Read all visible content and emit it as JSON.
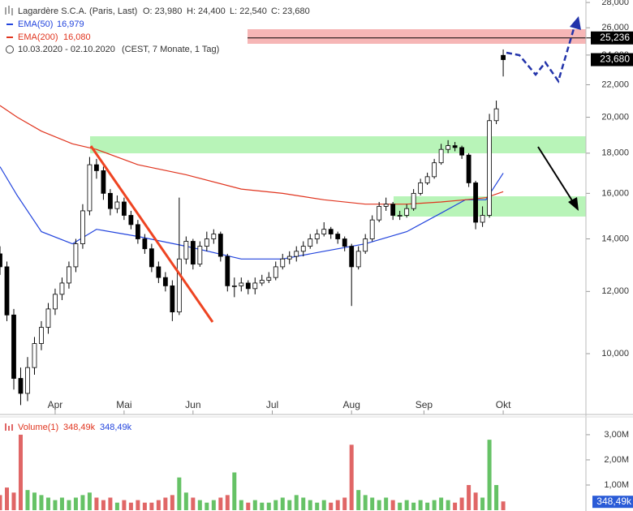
{
  "header": {
    "title": "Lagardère S.C.A. (Paris, Last)",
    "open": "O: 23,980",
    "high": "H: 24,400",
    "low": "L: 22,540",
    "close": "C: 23,680",
    "range": "10.03.2020 - 02.10.2020",
    "period": "(CEST, 7 Monate, 1 Tag)"
  },
  "chart_data": [
    {
      "type": "candlestick",
      "log": true,
      "x": [
        0,
        2,
        4,
        6,
        8,
        10,
        12,
        14,
        16,
        18,
        20,
        22,
        24,
        26,
        28,
        30,
        32,
        34,
        36,
        38,
        40,
        42,
        44,
        46,
        48,
        50,
        52,
        54,
        56,
        58,
        60,
        62,
        64,
        66,
        68,
        70,
        72,
        74,
        76,
        78,
        80,
        82,
        84,
        86,
        88,
        90,
        92,
        94,
        96,
        98,
        100,
        102,
        104,
        106,
        108,
        110,
        112,
        114,
        116,
        118,
        120,
        122,
        124,
        126,
        128,
        130,
        132,
        134,
        136,
        138,
        140,
        142,
        144,
        146
      ],
      "open": [
        13400,
        12900,
        11200,
        9300,
        8900,
        9600,
        10300,
        10800,
        11400,
        11900,
        12300,
        12900,
        13800,
        15200,
        17400,
        17100,
        16000,
        15300,
        15600,
        15000,
        14600,
        14000,
        13600,
        12900,
        12500,
        12200,
        11300,
        13200,
        13900,
        13000,
        13700,
        14000,
        14200,
        13300,
        12200,
        12200,
        12300,
        12100,
        12300,
        12400,
        12500,
        12900,
        13200,
        13300,
        13500,
        13700,
        14000,
        14200,
        14400,
        14200,
        14000,
        13700,
        12900,
        13500,
        14000,
        14800,
        15400,
        15500,
        15000,
        15000,
        15300,
        16000,
        16500,
        16800,
        17500,
        18200,
        18400,
        18300,
        17900,
        16500,
        14700,
        15000,
        19800,
        23980
      ],
      "high": [
        13700,
        13100,
        11400,
        9600,
        9900,
        10500,
        11000,
        11600,
        12100,
        12500,
        13100,
        14000,
        15500,
        17800,
        17700,
        17300,
        16200,
        15900,
        15800,
        15200,
        14800,
        14200,
        13800,
        13100,
        12700,
        12400,
        15800,
        14100,
        14000,
        13900,
        14300,
        14400,
        14300,
        13400,
        12500,
        12500,
        12400,
        12500,
        12600,
        12700,
        13100,
        13400,
        13500,
        13700,
        13900,
        14200,
        14400,
        14700,
        14500,
        14300,
        14100,
        13800,
        13700,
        14200,
        15000,
        15600,
        15800,
        15600,
        15200,
        15500,
        16200,
        16700,
        17000,
        17700,
        18500,
        18700,
        18600,
        18400,
        18000,
        16600,
        15400,
        20200,
        21000,
        24400
      ],
      "low": [
        12600,
        11000,
        9000,
        8600,
        8700,
        9400,
        10100,
        10600,
        11200,
        11700,
        12100,
        12700,
        13600,
        15000,
        16700,
        15700,
        15000,
        15100,
        14800,
        14400,
        13800,
        13400,
        12700,
        12300,
        12000,
        11000,
        11200,
        13000,
        12800,
        12900,
        13500,
        13800,
        13100,
        12000,
        11800,
        12000,
        11900,
        11900,
        12200,
        12300,
        12400,
        12800,
        13000,
        13100,
        13300,
        13600,
        13800,
        14100,
        14000,
        13800,
        13500,
        11500,
        12800,
        13400,
        13900,
        14700,
        15200,
        14800,
        14800,
        14900,
        15200,
        15900,
        16400,
        16700,
        17400,
        18000,
        18100,
        17700,
        16300,
        14400,
        14500,
        14900,
        19600,
        22540
      ],
      "close": [
        12900,
        11200,
        9300,
        8900,
        9600,
        10300,
        10800,
        11400,
        11900,
        12300,
        12900,
        13800,
        15200,
        17400,
        17100,
        16000,
        15300,
        15600,
        15000,
        14600,
        14000,
        13600,
        12900,
        12500,
        12200,
        11300,
        13200,
        13900,
        13000,
        13700,
        14000,
        14200,
        13300,
        12200,
        12200,
        12300,
        12100,
        12300,
        12400,
        12500,
        12900,
        13200,
        13300,
        13500,
        13700,
        14000,
        14200,
        14400,
        14200,
        14000,
        13700,
        12900,
        13500,
        14000,
        14800,
        15400,
        15500,
        15000,
        15000,
        15300,
        16000,
        16500,
        16800,
        17500,
        18200,
        18400,
        18300,
        17900,
        16500,
        14700,
        15000,
        19800,
        20500,
        23680
      ],
      "up_color": "#ffffff",
      "down_color": "#000000",
      "xlim": [
        0,
        170
      ],
      "xticks": [
        {
          "value": 16,
          "label": "Apr"
        },
        {
          "value": 36,
          "label": "Mai"
        },
        {
          "value": 56,
          "label": "Jun"
        },
        {
          "value": 79,
          "label": "Jul"
        },
        {
          "value": 102,
          "label": "Aug"
        },
        {
          "value": 123,
          "label": "Sep"
        },
        {
          "value": 146,
          "label": "Okt"
        }
      ],
      "ylim": [
        8386,
        28205
      ],
      "yticks": [
        {
          "value": 10000,
          "label": "10,000"
        },
        {
          "value": 12000,
          "label": "12,000"
        },
        {
          "value": 14000,
          "label": "14,000"
        },
        {
          "value": 16000,
          "label": "16,000"
        },
        {
          "value": 18000,
          "label": "18,000"
        },
        {
          "value": 20000,
          "label": "20,000"
        },
        {
          "value": 22000,
          "label": "22,000"
        },
        {
          "value": 24000,
          "label": "24,000"
        },
        {
          "value": 26000,
          "label": "26,000"
        },
        {
          "value": 28000,
          "label": "28,000"
        }
      ],
      "series": [
        {
          "name": "EMA(50)",
          "legend_value": "16,979",
          "color": "#2244dd",
          "x": [
            0,
            5,
            12,
            21,
            28,
            40,
            54,
            70,
            82,
            94,
            106,
            118,
            128,
            135,
            141,
            146
          ],
          "values": [
            17300,
            15900,
            14300,
            13800,
            14400,
            14100,
            13700,
            13200,
            13200,
            13500,
            13800,
            14300,
            15100,
            15700,
            15700,
            16979
          ]
        },
        {
          "name": "EMA(200)",
          "legend_value": "16,080",
          "color": "#e0341e",
          "x": [
            0,
            5,
            12,
            21,
            28,
            40,
            54,
            70,
            82,
            94,
            106,
            118,
            128,
            135,
            141,
            146
          ],
          "values": [
            20700,
            20000,
            19200,
            18500,
            18200,
            17400,
            16900,
            16200,
            16000,
            15700,
            15500,
            15500,
            15600,
            15700,
            15800,
            16080
          ]
        }
      ],
      "price_line": {
        "value": 25236,
        "label": "25,236"
      },
      "last_price": {
        "value": 23680,
        "label": "23,680"
      }
    },
    {
      "type": "bar",
      "title": "Volume(1)",
      "legend_value": "348,49k",
      "average_label": "348,49k",
      "x": [
        0,
        2,
        4,
        6,
        8,
        10,
        12,
        14,
        16,
        18,
        20,
        22,
        24,
        26,
        28,
        30,
        32,
        34,
        36,
        38,
        40,
        42,
        44,
        46,
        48,
        50,
        52,
        54,
        56,
        58,
        60,
        62,
        64,
        66,
        68,
        70,
        72,
        74,
        76,
        78,
        80,
        82,
        84,
        86,
        88,
        90,
        92,
        94,
        96,
        98,
        100,
        102,
        104,
        106,
        108,
        110,
        112,
        114,
        116,
        118,
        120,
        122,
        124,
        126,
        128,
        130,
        132,
        134,
        136,
        138,
        140,
        142,
        144,
        146
      ],
      "values": [
        600000,
        900000,
        700000,
        3000000,
        800000,
        700000,
        600000,
        500000,
        400000,
        500000,
        400000,
        500000,
        600000,
        700000,
        500000,
        400000,
        500000,
        300000,
        400000,
        300000,
        400000,
        300000,
        300000,
        400000,
        500000,
        600000,
        1300000,
        700000,
        500000,
        400000,
        300000,
        400000,
        500000,
        600000,
        1500000,
        400000,
        300000,
        400000,
        300000,
        300000,
        400000,
        500000,
        400000,
        600000,
        500000,
        400000,
        300000,
        400000,
        300000,
        400000,
        500000,
        2600000,
        800000,
        600000,
        500000,
        400000,
        500000,
        400000,
        300000,
        400000,
        300000,
        400000,
        300000,
        400000,
        500000,
        400000,
        300000,
        500000,
        1000000,
        700000,
        500000,
        2800000,
        1000000,
        348490
      ],
      "up_color": "#66c266",
      "down_color": "#e06666",
      "xlim": [
        0,
        170
      ],
      "ylim": [
        0,
        3610000
      ],
      "yticks": [
        {
          "value": 1000000,
          "label": "1,00M"
        },
        {
          "value": 2000000,
          "label": "2,00M"
        },
        {
          "value": 3000000,
          "label": "3,00M"
        }
      ],
      "last_price": {
        "value": 348490,
        "label": "348,49k"
      }
    }
  ]
}
